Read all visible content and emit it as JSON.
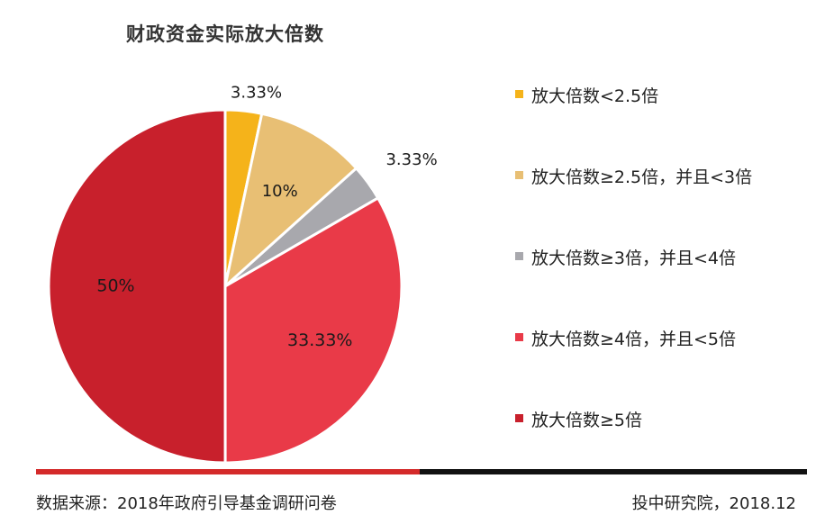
{
  "chart_data": {
    "type": "pie",
    "title": "财政资金实际放大倍数",
    "slices": [
      {
        "label": "放大倍数<2.5倍",
        "value": 3.33,
        "display": "3.33%",
        "color": "#f5b31a"
      },
      {
        "label": "放大倍数≥2.5倍，并且<3倍",
        "value": 10,
        "display": "10%",
        "color": "#e8bf74"
      },
      {
        "label": "放大倍数≥3倍，并且<4倍",
        "value": 3.33,
        "display": "3.33%",
        "color": "#a8a8ad"
      },
      {
        "label": "放大倍数≥4倍，并且<5倍",
        "value": 33.33,
        "display": "33.33%",
        "color": "#e93a48"
      },
      {
        "label": "放大倍数≥5倍",
        "value": 50,
        "display": "50%",
        "color": "#c8202c"
      }
    ],
    "legend_position": "right"
  },
  "footer": {
    "source": "数据来源：2018年政府引导基金调研问卷",
    "credit": "投中研究院，2018.12"
  }
}
